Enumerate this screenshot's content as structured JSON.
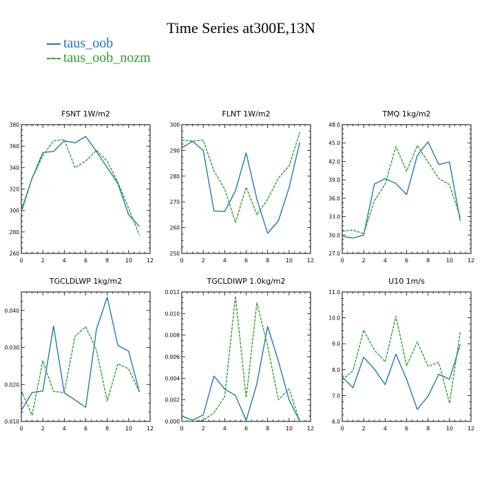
{
  "title": "Time Series at300E,13N",
  "legend": [
    {
      "name": "taus_oob",
      "color": "#1f77b4",
      "dash": false
    },
    {
      "name": "taus_oob_nozm",
      "color": "#2ca02c",
      "dash": true
    }
  ],
  "chart_data": [
    {
      "type": "line",
      "title": "FSNT   1W/m2",
      "x": [
        0,
        1,
        2,
        3,
        4,
        5,
        6,
        7,
        8,
        9,
        10,
        11
      ],
      "xlim": [
        0,
        12
      ],
      "xticks": [
        0,
        2,
        4,
        6,
        8,
        10,
        12
      ],
      "ylim": [
        260,
        380
      ],
      "yticks": [
        260,
        280,
        300,
        320,
        340,
        360,
        380
      ],
      "ydecimals": 0,
      "series": [
        {
          "name": "taus_oob",
          "values": [
            300,
            330,
            354,
            355,
            365,
            363,
            369,
            355,
            340,
            325,
            296,
            285
          ]
        },
        {
          "name": "taus_oob_nozm",
          "values": [
            298,
            330,
            351,
            365,
            366,
            340,
            346,
            356,
            346,
            326,
            302,
            277
          ]
        }
      ]
    },
    {
      "type": "line",
      "title": "FLNT   1W/m2",
      "x": [
        0,
        1,
        2,
        3,
        4,
        5,
        6,
        7,
        8,
        9,
        10,
        11
      ],
      "xlim": [
        0,
        12
      ],
      "xticks": [
        0,
        2,
        4,
        6,
        8,
        10,
        12
      ],
      "ylim": [
        250,
        300
      ],
      "yticks": [
        250,
        260,
        270,
        280,
        290,
        300
      ],
      "ydecimals": 0,
      "series": [
        {
          "name": "taus_oob",
          "values": [
            291,
            293.5,
            290,
            266.5,
            266.3,
            274.3,
            289,
            271,
            257.8,
            262.6,
            275.5,
            293.2
          ]
        },
        {
          "name": "taus_oob_nozm",
          "values": [
            294,
            293.6,
            294,
            282,
            275,
            262,
            275.7,
            265,
            271,
            279.2,
            284,
            297
          ]
        }
      ]
    },
    {
      "type": "line",
      "title": "TMQ   1kg/m2",
      "x": [
        0,
        1,
        2,
        3,
        4,
        5,
        6,
        7,
        8,
        9,
        10,
        11
      ],
      "xlim": [
        0,
        12
      ],
      "xticks": [
        0,
        2,
        4,
        6,
        8,
        10,
        12
      ],
      "ylim": [
        27,
        48
      ],
      "yticks": [
        27.0,
        30.0,
        33.0,
        36.0,
        39.0,
        42.0,
        45.0,
        48.0
      ],
      "ydecimals": 1,
      "series": [
        {
          "name": "taus_oob",
          "values": [
            29.8,
            29.5,
            30.0,
            38.3,
            39.2,
            38.4,
            36.6,
            43.0,
            45.2,
            41.5,
            41.9,
            32.3
          ]
        },
        {
          "name": "taus_oob_nozm",
          "values": [
            30.6,
            30.8,
            30.2,
            35.6,
            38.3,
            44.4,
            40.4,
            44.6,
            41.9,
            39.2,
            38.2,
            32.9
          ]
        }
      ]
    },
    {
      "type": "line",
      "title": "TGCLDLWP   1kg/m2",
      "x": [
        0,
        1,
        2,
        3,
        4,
        5,
        6,
        7,
        8,
        9,
        10,
        11
      ],
      "xlim": [
        0,
        12
      ],
      "xticks": [
        0,
        2,
        4,
        6,
        8,
        10,
        12
      ],
      "ylim": [
        0.01,
        0.045
      ],
      "yticks": [
        0.01,
        0.02,
        0.03,
        0.04
      ],
      "ydecimals": 3,
      "series": [
        {
          "name": "taus_oob",
          "values": [
            0.013,
            0.0178,
            0.0182,
            0.0358,
            0.0177,
            0.0158,
            0.0138,
            0.0349,
            0.0436,
            0.0305,
            0.029,
            0.018
          ]
        },
        {
          "name": "taus_oob_nozm",
          "values": [
            0.0183,
            0.0117,
            0.0264,
            0.0181,
            0.0178,
            0.033,
            0.0356,
            0.0293,
            0.0155,
            0.0256,
            0.0242,
            0.018
          ]
        }
      ]
    },
    {
      "type": "line",
      "title": "TGCLDIWP   1.0kg/m2",
      "x": [
        0,
        1,
        2,
        3,
        4,
        5,
        6,
        7,
        8,
        9,
        10,
        11
      ],
      "xlim": [
        0,
        12
      ],
      "xticks": [
        0,
        2,
        4,
        6,
        8,
        10,
        12
      ],
      "ylim": [
        0,
        0.012
      ],
      "yticks": [
        0.0,
        0.002,
        0.004,
        0.006,
        0.008,
        0.01,
        0.012
      ],
      "ydecimals": 3,
      "series": [
        {
          "name": "taus_oob",
          "values": [
            0.0005,
            0.0001,
            0.0006,
            0.0042,
            0.003,
            0.0024,
            0.0001,
            0.0035,
            0.0088,
            0.0056,
            0.002,
            0.0
          ]
        },
        {
          "name": "taus_oob_nozm",
          "values": [
            0.0,
            0.0,
            0.0001,
            0.0008,
            0.0023,
            0.0116,
            0.0022,
            0.011,
            0.007,
            0.002,
            0.003,
            0.0
          ]
        }
      ]
    },
    {
      "type": "line",
      "title": "U10   1m/s",
      "x": [
        0,
        1,
        2,
        3,
        4,
        5,
        6,
        7,
        8,
        9,
        10,
        11
      ],
      "xlim": [
        0,
        12
      ],
      "xticks": [
        0,
        2,
        4,
        6,
        8,
        10,
        12
      ],
      "ylim": [
        6,
        11
      ],
      "yticks": [
        6.0,
        7.0,
        8.0,
        9.0,
        10.0,
        11.0
      ],
      "ydecimals": 1,
      "series": [
        {
          "name": "taus_oob",
          "values": [
            7.72,
            7.3,
            8.48,
            8.02,
            7.42,
            8.6,
            7.63,
            6.46,
            6.98,
            7.82,
            7.63,
            8.98
          ]
        },
        {
          "name": "taus_oob_nozm",
          "values": [
            7.6,
            7.96,
            9.52,
            8.75,
            8.3,
            10.06,
            8.15,
            9.07,
            8.13,
            8.28,
            6.7,
            9.45
          ]
        }
      ]
    }
  ]
}
